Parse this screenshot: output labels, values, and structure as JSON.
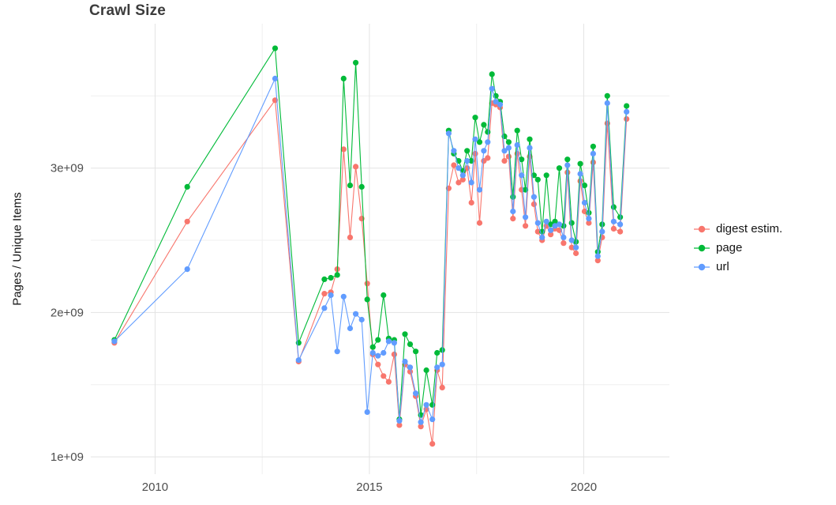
{
  "chart_data": {
    "type": "line",
    "title": "Crawl Size",
    "xlabel": "",
    "ylabel": "Pages / Unique Items",
    "unit_note": "series values are in units of 1e+09 pages/items",
    "grid": true,
    "legend_position": "right",
    "xlim": [
      2008.5,
      2022.0
    ],
    "ylim": [
      0.88,
      4.0
    ],
    "x_ticks": [
      {
        "v": 2010,
        "label": "2010"
      },
      {
        "v": 2015,
        "label": "2015"
      },
      {
        "v": 2020,
        "label": "2020"
      }
    ],
    "x_minor": [
      2012.5,
      2017.5
    ],
    "y_ticks": [
      {
        "v": 1,
        "label": "1e+09"
      },
      {
        "v": 2,
        "label": "2e+09"
      },
      {
        "v": 3,
        "label": "3e+09"
      }
    ],
    "y_minor": [
      1.5,
      2.5,
      3.5
    ],
    "colors": {
      "digest": "#F8766D",
      "page": "#00BA38",
      "url": "#619CFF",
      "grid_major": "#e3e3e3",
      "grid_minor": "#efefef"
    },
    "x": [
      2009.05,
      2010.75,
      2012.8,
      2013.35,
      2013.95,
      2014.1,
      2014.25,
      2014.4,
      2014.55,
      2014.68,
      2014.82,
      2014.95,
      2015.08,
      2015.2,
      2015.33,
      2015.45,
      2015.58,
      2015.7,
      2015.83,
      2015.95,
      2016.08,
      2016.2,
      2016.33,
      2016.47,
      2016.58,
      2016.7,
      2016.85,
      2016.97,
      2017.08,
      2017.18,
      2017.28,
      2017.38,
      2017.47,
      2017.57,
      2017.67,
      2017.76,
      2017.86,
      2017.95,
      2018.05,
      2018.15,
      2018.25,
      2018.35,
      2018.45,
      2018.55,
      2018.64,
      2018.74,
      2018.84,
      2018.93,
      2019.03,
      2019.13,
      2019.23,
      2019.33,
      2019.43,
      2019.53,
      2019.62,
      2019.72,
      2019.82,
      2019.92,
      2020.02,
      2020.12,
      2020.22,
      2020.33,
      2020.43,
      2020.55,
      2020.7,
      2020.85,
      2021.0
    ],
    "series": [
      {
        "name": "digest estim.",
        "color": "#F8766D",
        "values": [
          1.79,
          2.63,
          3.47,
          1.66,
          2.13,
          2.14,
          2.3,
          3.13,
          2.52,
          3.01,
          2.65,
          2.2,
          1.71,
          1.64,
          1.56,
          1.52,
          1.71,
          1.22,
          1.64,
          1.59,
          1.42,
          1.21,
          1.33,
          1.09,
          1.6,
          1.48,
          2.86,
          3.02,
          2.9,
          2.92,
          3.0,
          2.76,
          3.1,
          2.62,
          3.05,
          3.07,
          3.45,
          3.44,
          3.42,
          3.05,
          3.08,
          2.65,
          3.1,
          2.85,
          2.6,
          3.08,
          2.75,
          2.56,
          2.5,
          2.6,
          2.54,
          2.58,
          2.57,
          2.48,
          2.97,
          2.45,
          2.41,
          2.91,
          2.7,
          2.62,
          3.04,
          2.36,
          2.52,
          3.31,
          2.58,
          2.56,
          3.34
        ]
      },
      {
        "name": "page",
        "color": "#00BA38",
        "values": [
          1.81,
          2.87,
          3.83,
          1.79,
          2.23,
          2.24,
          2.26,
          3.62,
          2.88,
          3.73,
          2.87,
          2.09,
          1.76,
          1.81,
          2.12,
          1.82,
          1.81,
          1.26,
          1.85,
          1.78,
          1.73,
          1.29,
          1.6,
          1.36,
          1.72,
          1.74,
          3.26,
          3.1,
          3.05,
          2.98,
          3.12,
          3.05,
          3.35,
          3.18,
          3.3,
          3.25,
          3.65,
          3.5,
          3.46,
          3.22,
          3.18,
          2.8,
          3.26,
          3.06,
          2.85,
          3.2,
          2.95,
          2.92,
          2.56,
          2.95,
          2.61,
          2.63,
          3.0,
          2.6,
          3.06,
          2.62,
          2.49,
          3.03,
          2.88,
          2.69,
          3.15,
          2.42,
          2.61,
          3.5,
          2.73,
          2.66,
          3.43
        ]
      },
      {
        "name": "url",
        "color": "#619CFF",
        "values": [
          1.8,
          2.3,
          3.62,
          1.67,
          2.03,
          2.12,
          1.73,
          2.11,
          1.89,
          1.99,
          1.95,
          1.31,
          1.72,
          1.7,
          1.72,
          1.8,
          1.79,
          1.25,
          1.66,
          1.62,
          1.44,
          1.24,
          1.36,
          1.26,
          1.62,
          1.64,
          3.24,
          3.12,
          3.0,
          2.95,
          3.05,
          2.9,
          3.2,
          2.85,
          3.12,
          3.18,
          3.55,
          3.46,
          3.44,
          3.12,
          3.14,
          2.7,
          3.16,
          2.95,
          2.66,
          3.14,
          2.8,
          2.62,
          2.52,
          2.63,
          2.57,
          2.6,
          2.61,
          2.52,
          3.02,
          2.5,
          2.45,
          2.96,
          2.76,
          2.65,
          3.1,
          2.39,
          2.56,
          3.45,
          2.63,
          2.61,
          3.39
        ]
      }
    ]
  }
}
